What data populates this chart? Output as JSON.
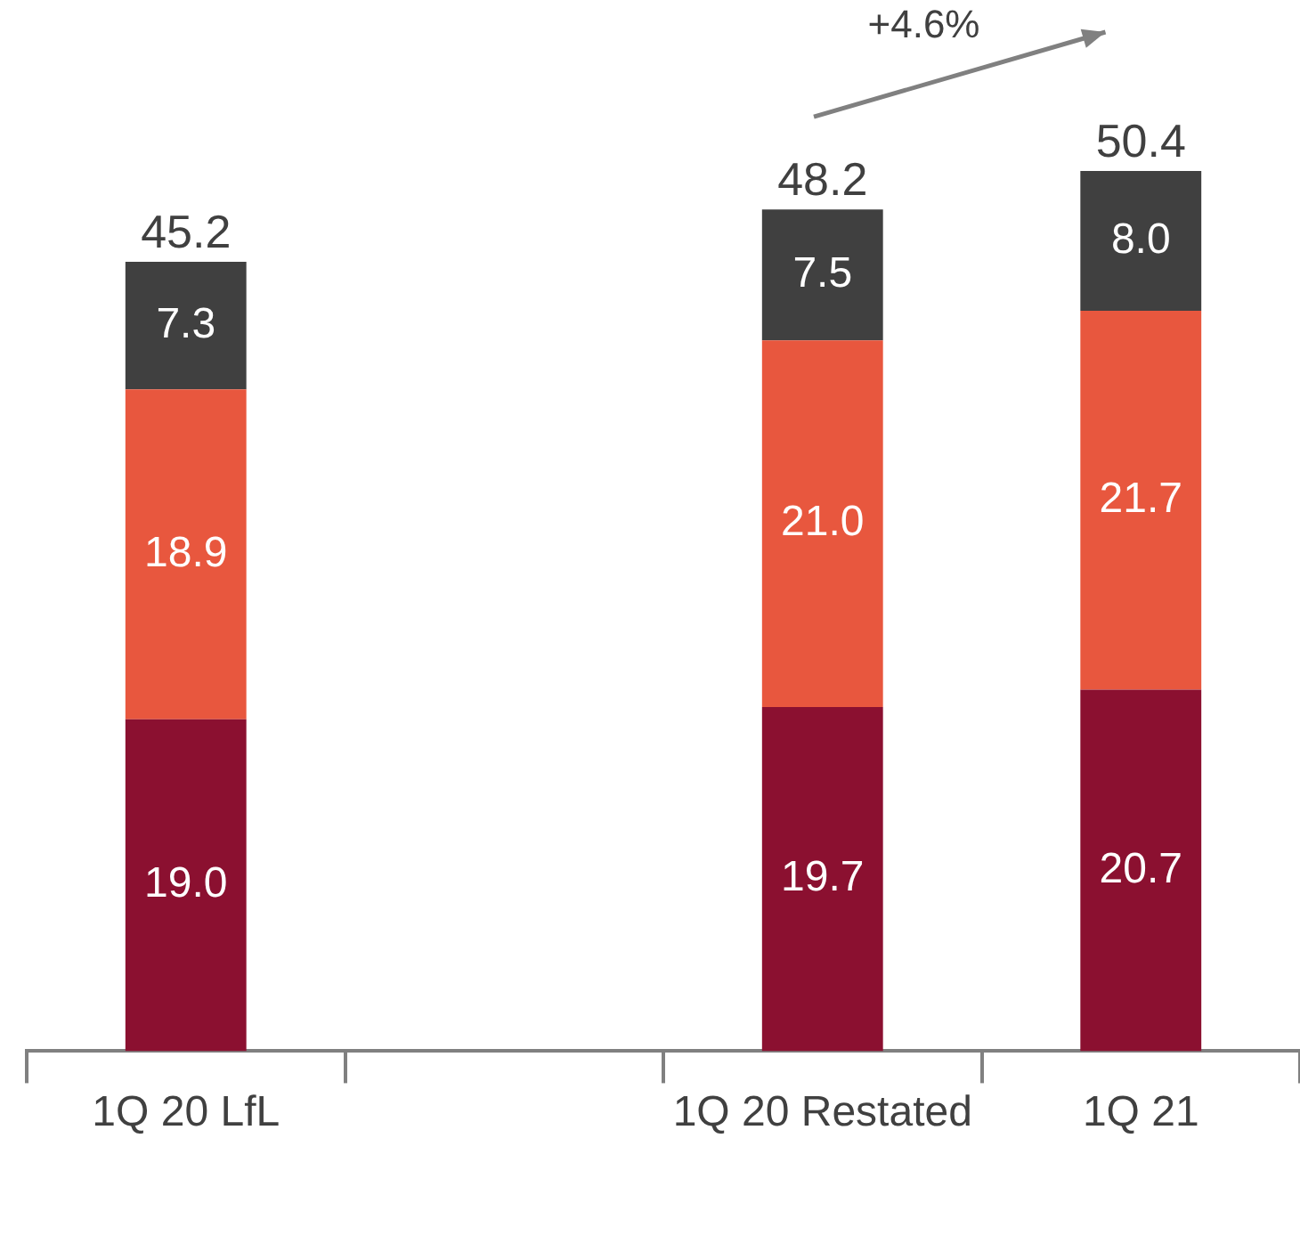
{
  "chart_data": {
    "type": "bar",
    "stacked": true,
    "categories": [
      "1Q 20 LfL",
      null,
      "1Q 20 Restated",
      "1Q 21"
    ],
    "series": [
      {
        "color": "#8b1030",
        "values": [
          19.0,
          null,
          19.7,
          20.7
        ],
        "value_labels": [
          "19.0",
          null,
          "19.7",
          "20.7"
        ]
      },
      {
        "color": "#e8573e",
        "values": [
          18.9,
          null,
          21.0,
          21.7
        ],
        "value_labels": [
          "18.9",
          null,
          "21.0",
          "21.7"
        ]
      },
      {
        "color": "#404040",
        "values": [
          7.3,
          null,
          7.5,
          8.0
        ],
        "value_labels": [
          "7.3",
          null,
          "7.5",
          "8.0"
        ]
      }
    ],
    "totals": [
      "45.2",
      null,
      "48.2",
      "50.4"
    ],
    "annotations": [
      "+4.6%"
    ],
    "legend": false,
    "grid": false
  }
}
